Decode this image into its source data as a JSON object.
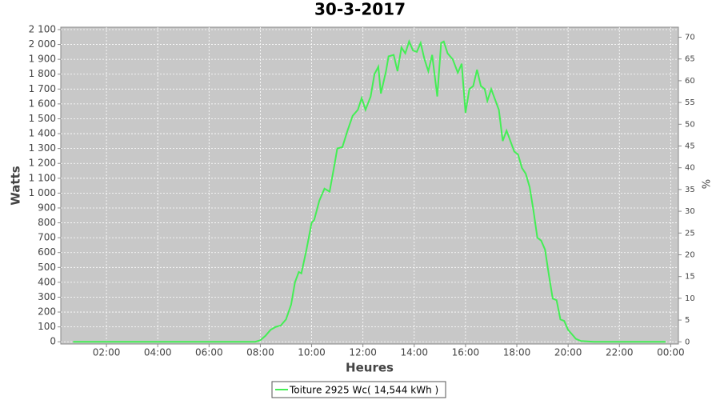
{
  "chart_data": {
    "type": "line",
    "title": "30-3-2017",
    "x_label": "Heures",
    "y_label": "Watts",
    "y2_label": "%",
    "x": [
      0.7,
      2,
      4,
      6,
      7.8,
      8.0,
      8.2,
      8.4,
      8.6,
      8.8,
      9.0,
      9.2,
      9.35,
      9.5,
      9.6,
      9.8,
      10.0,
      10.1,
      10.3,
      10.5,
      10.7,
      10.9,
      11.0,
      11.2,
      11.4,
      11.6,
      11.8,
      11.95,
      12.1,
      12.3,
      12.45,
      12.6,
      12.7,
      12.9,
      13.0,
      13.2,
      13.35,
      13.5,
      13.65,
      13.8,
      13.95,
      14.1,
      14.25,
      14.4,
      14.55,
      14.7,
      14.9,
      15.05,
      15.15,
      15.3,
      15.5,
      15.7,
      15.85,
      16.0,
      16.15,
      16.3,
      16.45,
      16.6,
      16.75,
      16.85,
      17.0,
      17.15,
      17.3,
      17.45,
      17.6,
      17.75,
      17.9,
      18.05,
      18.2,
      18.35,
      18.5,
      18.65,
      18.8,
      18.95,
      19.1,
      19.25,
      19.4,
      19.55,
      19.7,
      19.85,
      20.0,
      20.15,
      20.3,
      20.5,
      21,
      23.8
    ],
    "series": [
      {
        "name": "Toiture 2925 Wc( 14,544 kWh )",
        "color": "#44ee55",
        "values": [
          0,
          0,
          0,
          0,
          0,
          10,
          40,
          80,
          100,
          110,
          150,
          250,
          400,
          470,
          460,
          620,
          800,
          820,
          950,
          1030,
          1010,
          1200,
          1300,
          1310,
          1420,
          1520,
          1560,
          1640,
          1560,
          1650,
          1800,
          1850,
          1670,
          1820,
          1920,
          1930,
          1820,
          1980,
          1940,
          2020,
          1960,
          1950,
          2010,
          1900,
          1820,
          1930,
          1650,
          2010,
          2020,
          1940,
          1900,
          1810,
          1870,
          1540,
          1700,
          1720,
          1830,
          1720,
          1700,
          1620,
          1700,
          1630,
          1560,
          1350,
          1420,
          1350,
          1280,
          1260,
          1170,
          1130,
          1040,
          880,
          700,
          680,
          620,
          450,
          290,
          280,
          150,
          140,
          80,
          50,
          20,
          5,
          0,
          0
        ]
      }
    ],
    "xlim": [
      0.22,
      24.3
    ],
    "xticks": [
      {
        "value": 2,
        "label": "02:00"
      },
      {
        "value": 4,
        "label": "04:00"
      },
      {
        "value": 6,
        "label": "06:00"
      },
      {
        "value": 8,
        "label": "08:00"
      },
      {
        "value": 10,
        "label": "10:00"
      },
      {
        "value": 12,
        "label": "12:00"
      },
      {
        "value": 14,
        "label": "14:00"
      },
      {
        "value": 16,
        "label": "16:00"
      },
      {
        "value": 18,
        "label": "18:00"
      },
      {
        "value": 20,
        "label": "20:00"
      },
      {
        "value": 22,
        "label": "22:00"
      },
      {
        "value": 24,
        "label": "00:00"
      }
    ],
    "ylim": [
      -15,
      2116
    ],
    "yticks": [
      0,
      100,
      200,
      300,
      400,
      500,
      600,
      700,
      800,
      900,
      {
        "value": 1000,
        "label": "1 000"
      },
      {
        "value": 1100,
        "label": "1 100"
      },
      {
        "value": 1200,
        "label": "1 200"
      },
      {
        "value": 1300,
        "label": "1 300"
      },
      {
        "value": 1400,
        "label": "1 400"
      },
      {
        "value": 1500,
        "label": "1 500"
      },
      {
        "value": 1600,
        "label": "1 600"
      },
      {
        "value": 1700,
        "label": "1 700"
      },
      {
        "value": 1800,
        "label": "1 800"
      },
      {
        "value": 1900,
        "label": "1 900"
      },
      {
        "value": 2000,
        "label": "2 000"
      },
      {
        "value": 2100,
        "label": "2 100"
      }
    ],
    "y2lim": [
      -0.5,
      72.3
    ],
    "y2ticks": [
      0,
      5,
      10,
      15,
      20,
      25,
      30,
      35,
      40,
      45,
      50,
      55,
      60,
      65,
      70
    ],
    "grid": true
  }
}
